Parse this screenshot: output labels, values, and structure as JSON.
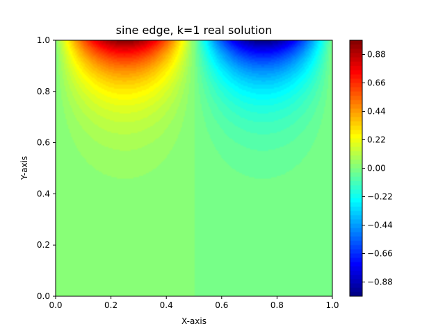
{
  "chart_data": {
    "type": "heatmap",
    "title": "sine edge, k=1 real solution",
    "xlabel": "X-axis",
    "ylabel": "Y-axis",
    "xlim": [
      0.0,
      1.0
    ],
    "ylim": [
      0.0,
      1.0
    ],
    "x_ticks": [
      0.0,
      0.2,
      0.4,
      0.6,
      0.8,
      1.0
    ],
    "y_ticks": [
      0.0,
      0.2,
      0.4,
      0.6,
      0.8,
      1.0
    ],
    "x_tick_labels": [
      "0.0",
      "0.2",
      "0.4",
      "0.6",
      "0.8",
      "1.0"
    ],
    "y_tick_labels": [
      "0.0",
      "0.2",
      "0.4",
      "0.6",
      "0.8",
      "1.0"
    ],
    "colormap": "jet",
    "vmin": -0.99,
    "vmax": 0.99,
    "field_max": 0.99,
    "boundary": "top edge",
    "colorbar_ticks": [
      0.88,
      0.66,
      0.44,
      0.22,
      0.0,
      -0.22,
      -0.44,
      -0.66,
      -0.88
    ],
    "colorbar_tick_labels": [
      "0.88",
      "0.66",
      "0.44",
      "0.22",
      "0.00",
      "−0.22",
      "−0.44",
      "−0.66",
      "−0.88"
    ],
    "grid": false
  }
}
